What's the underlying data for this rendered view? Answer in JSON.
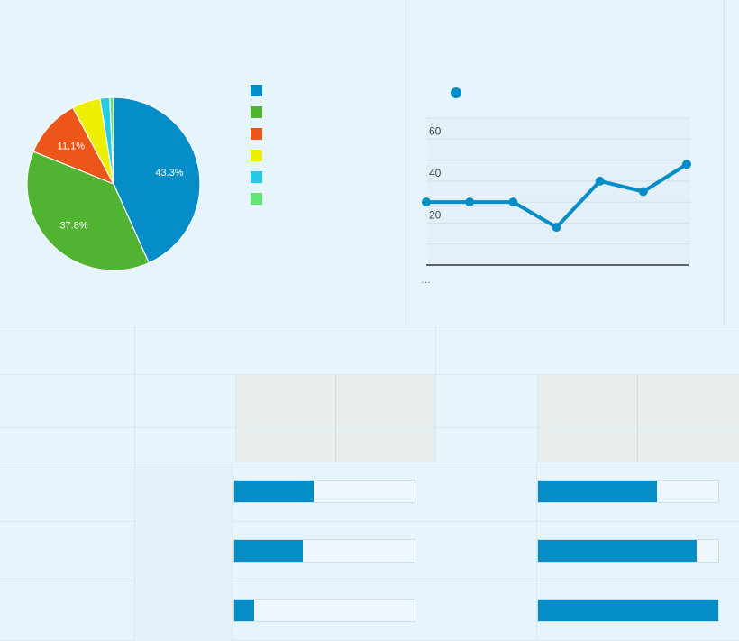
{
  "chart_data": [
    {
      "type": "pie",
      "slices": [
        {
          "value": 43.3,
          "label": "43.3%",
          "color": "#058dc7"
        },
        {
          "value": 37.8,
          "label": "37.8%",
          "color": "#50b432"
        },
        {
          "value": 11.1,
          "label": "11.1%",
          "color": "#ed561b"
        },
        {
          "value": 5.3,
          "label": "",
          "color": "#edef00"
        },
        {
          "value": 1.8,
          "label": "",
          "color": "#24cbe5"
        },
        {
          "value": 0.7,
          "label": "",
          "color": "#64e572"
        }
      ],
      "legend_position": "right"
    },
    {
      "type": "line",
      "ylim": [
        0,
        70
      ],
      "yticks": [
        "60",
        "40",
        "20"
      ],
      "ytick_values": [
        60,
        40,
        20
      ],
      "x_tick_label": "…",
      "series": [
        {
          "color": "#058dc7",
          "values": [
            30,
            30,
            30,
            18,
            40,
            35,
            48
          ]
        }
      ],
      "grid": true
    },
    {
      "type": "bar",
      "orientation": "horizontal",
      "color": "#058dc7",
      "series": [
        {
          "values": [
            0.44,
            0.38,
            0.11
          ]
        },
        {
          "values": [
            0.66,
            0.88,
            1.0
          ]
        }
      ]
    }
  ]
}
